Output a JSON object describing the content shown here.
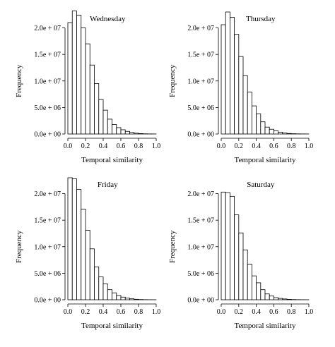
{
  "chart_data": [
    {
      "type": "bar",
      "title": "Wednesday",
      "xlabel": "Temporal similarity",
      "ylabel": "Frequency",
      "xlim": [
        0,
        1
      ],
      "ylim": [
        0,
        23000000
      ],
      "x_ticks": [
        "0.0",
        "0.2",
        "0.4",
        "0.6",
        "0.8",
        "1.0"
      ],
      "y_ticks": [
        {
          "value": 0,
          "label": "0.0e + 00"
        },
        {
          "value": 5000000,
          "label": "5.0e + 06"
        },
        {
          "value": 10000000,
          "label": "1.0e + 07"
        },
        {
          "value": 15000000,
          "label": "1.5e + 07"
        },
        {
          "value": 20000000,
          "label": "2.0e + 07"
        }
      ],
      "bin_width": 0.05,
      "bin_starts": [
        0,
        0.05,
        0.1,
        0.15,
        0.2,
        0.25,
        0.3,
        0.35,
        0.4,
        0.45,
        0.5,
        0.55,
        0.6,
        0.65,
        0.7,
        0.75,
        0.8,
        0.85,
        0.9,
        0.95
      ],
      "values": [
        21000000,
        23200000,
        22400000,
        20000000,
        17000000,
        13000000,
        9500000,
        6500000,
        4500000,
        2800000,
        1800000,
        1200000,
        800000,
        500000,
        300000,
        150000,
        80000,
        40000,
        20000,
        10000
      ]
    },
    {
      "type": "bar",
      "title": "Thursday",
      "xlabel": "Temporal similarity",
      "ylabel": "Frequency",
      "xlim": [
        0,
        1
      ],
      "ylim": [
        0,
        23000000
      ],
      "x_ticks": [
        "0.0",
        "0.2",
        "0.4",
        "0.6",
        "0.8",
        "1.0"
      ],
      "y_ticks": [
        {
          "value": 0,
          "label": "0.0e + 00"
        },
        {
          "value": 5000000,
          "label": "5.0e + 06"
        },
        {
          "value": 10000000,
          "label": "1.0e + 07"
        },
        {
          "value": 15000000,
          "label": "1.5e + 07"
        },
        {
          "value": 20000000,
          "label": "2.0e + 07"
        }
      ],
      "bin_width": 0.05,
      "bin_starts": [
        0,
        0.05,
        0.1,
        0.15,
        0.2,
        0.25,
        0.3,
        0.35,
        0.4,
        0.45,
        0.5,
        0.55,
        0.6,
        0.65,
        0.7,
        0.75,
        0.8,
        0.85,
        0.9,
        0.95
      ],
      "values": [
        20600000,
        23000000,
        22000000,
        18800000,
        14600000,
        11000000,
        7900000,
        5300000,
        3800000,
        2300000,
        1300000,
        900000,
        600000,
        350000,
        200000,
        100000,
        60000,
        30000,
        15000,
        8000
      ]
    },
    {
      "type": "bar",
      "title": "Friday",
      "xlabel": "Temporal similarity",
      "ylabel": "Frequency",
      "xlim": [
        0,
        1
      ],
      "ylim": [
        0,
        23000000
      ],
      "x_ticks": [
        "0.0",
        "0.2",
        "0.4",
        "0.6",
        "0.8",
        "1.0"
      ],
      "y_ticks": [
        {
          "value": 0,
          "label": "0.0e + 00"
        },
        {
          "value": 5000000,
          "label": "5.0e + 06"
        },
        {
          "value": 10000000,
          "label": "1.0e + 07"
        },
        {
          "value": 15000000,
          "label": "1.5e + 07"
        },
        {
          "value": 20000000,
          "label": "2.0e + 07"
        }
      ],
      "bin_width": 0.05,
      "bin_starts": [
        0,
        0.05,
        0.1,
        0.15,
        0.2,
        0.25,
        0.3,
        0.35,
        0.4,
        0.45,
        0.5,
        0.55,
        0.6,
        0.65,
        0.7,
        0.75,
        0.8,
        0.85,
        0.9,
        0.95
      ],
      "values": [
        23000000,
        22800000,
        20800000,
        17100000,
        13100000,
        9600000,
        6200000,
        4300000,
        3000000,
        1900000,
        1300000,
        800000,
        500000,
        300000,
        180000,
        90000,
        45000,
        20000,
        10000,
        5000
      ]
    },
    {
      "type": "bar",
      "title": "Saturday",
      "xlabel": "Temporal similarity",
      "ylabel": "Frequency",
      "xlim": [
        0,
        1
      ],
      "ylim": [
        0,
        23000000
      ],
      "x_ticks": [
        "0.0",
        "0.2",
        "0.4",
        "0.6",
        "0.8",
        "1.0"
      ],
      "y_ticks": [
        {
          "value": 0,
          "label": "0.0e + 00"
        },
        {
          "value": 5000000,
          "label": "5.0e + 06"
        },
        {
          "value": 10000000,
          "label": "1.0e + 07"
        },
        {
          "value": 15000000,
          "label": "1.5e + 07"
        },
        {
          "value": 20000000,
          "label": "2.0e + 07"
        }
      ],
      "bin_width": 0.05,
      "bin_starts": [
        0,
        0.05,
        0.1,
        0.15,
        0.2,
        0.25,
        0.3,
        0.35,
        0.4,
        0.45,
        0.5,
        0.55,
        0.6,
        0.65,
        0.7,
        0.75,
        0.8,
        0.85,
        0.9,
        0.95
      ],
      "values": [
        20300000,
        20200000,
        19500000,
        16000000,
        12600000,
        9400000,
        6700000,
        4500000,
        3200000,
        1900000,
        1100000,
        700000,
        400000,
        250000,
        150000,
        80000,
        40000,
        20000,
        10000,
        5000
      ]
    }
  ]
}
